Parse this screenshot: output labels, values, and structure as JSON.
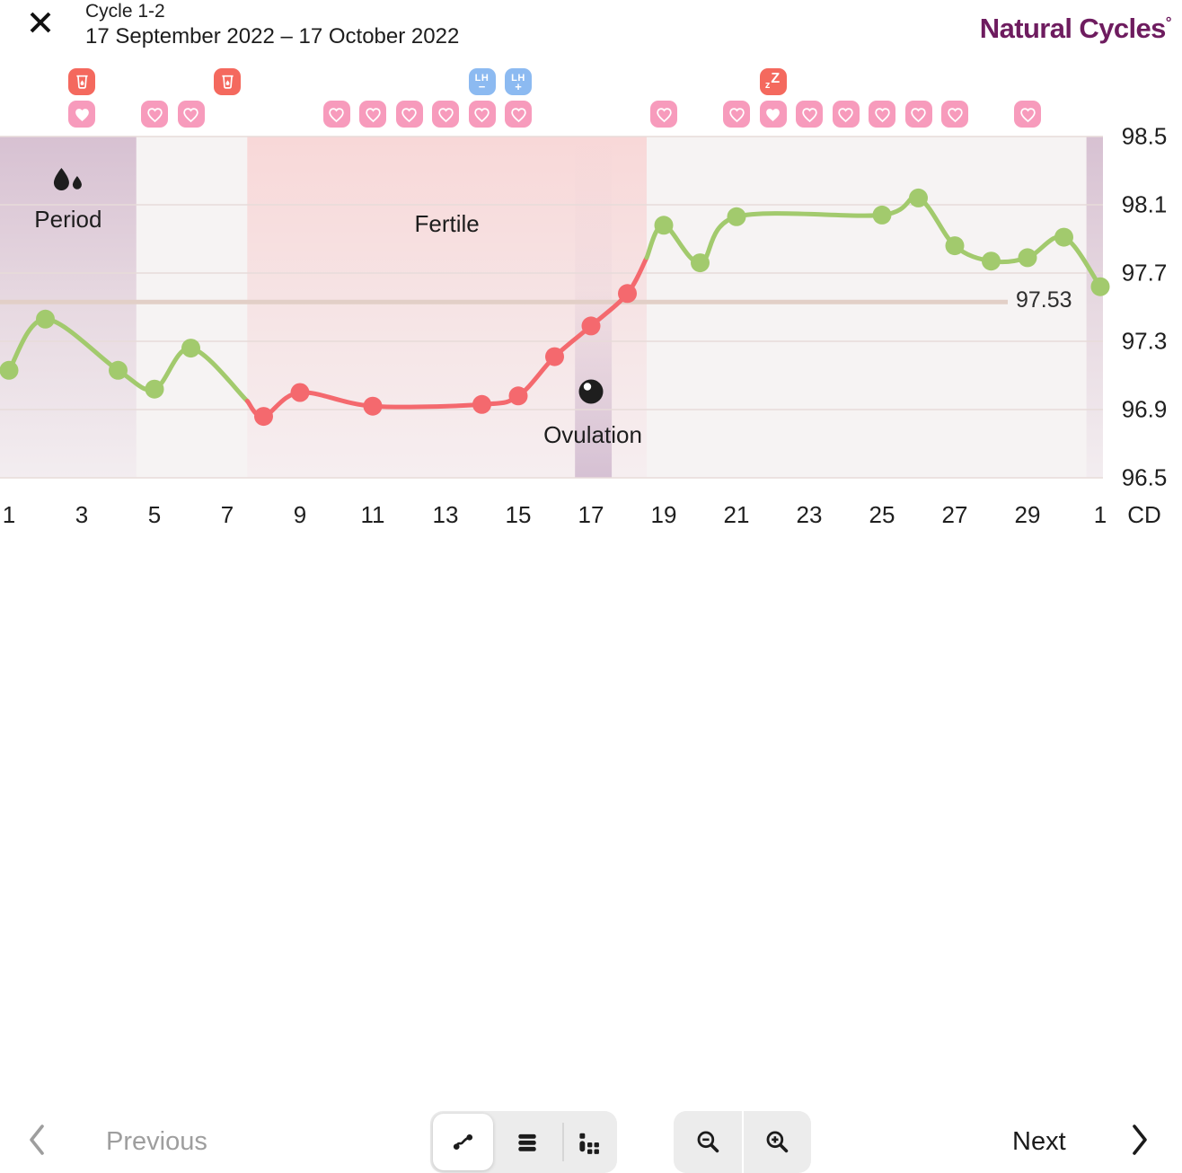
{
  "header": {
    "close_icon": "close",
    "title": "Cycle 1-2",
    "date_range": "17 September 2022 – 17 October 2022",
    "logo_text": "Natural Cycles",
    "logo_degree": "°"
  },
  "colors": {
    "logo_purple": "#6e1c5f",
    "line_green": "#a2ca6d",
    "line_red": "#f4696e",
    "heart_pink": "#f79bbc",
    "tracker_red": "#f4695e",
    "lh_blue": "#8cbaf1",
    "coverline_beige": "#e2cfc7"
  },
  "day_icons": {
    "top_row": [
      {
        "day": 3,
        "type": "menstrual-cup"
      },
      {
        "day": 7,
        "type": "menstrual-cup"
      },
      {
        "day": 14,
        "type": "lh-test-negative",
        "label": "LH",
        "sign": "−"
      },
      {
        "day": 15,
        "type": "lh-test-positive",
        "label": "LH",
        "sign": "+"
      },
      {
        "day": 22,
        "type": "sleep",
        "small_z": "z",
        "big_z": "Z"
      }
    ],
    "hearts": [
      {
        "day": 3,
        "filled": true
      },
      {
        "day": 5,
        "filled": false
      },
      {
        "day": 6,
        "filled": false
      },
      {
        "day": 10,
        "filled": false
      },
      {
        "day": 11,
        "filled": false
      },
      {
        "day": 12,
        "filled": false
      },
      {
        "day": 13,
        "filled": false
      },
      {
        "day": 14,
        "filled": false
      },
      {
        "day": 15,
        "filled": false
      },
      {
        "day": 19,
        "filled": false
      },
      {
        "day": 21,
        "filled": false
      },
      {
        "day": 22,
        "filled": true
      },
      {
        "day": 23,
        "filled": false
      },
      {
        "day": 24,
        "filled": false
      },
      {
        "day": 25,
        "filled": false
      },
      {
        "day": 26,
        "filled": false
      },
      {
        "day": 27,
        "filled": false
      },
      {
        "day": 29,
        "filled": false
      }
    ]
  },
  "chart_data": {
    "type": "line",
    "title": "Cycle 1-2 basal temperature chart",
    "x_axis_label": "CD",
    "xlim": [
      1,
      31
    ],
    "ylim": [
      96.5,
      98.5
    ],
    "grid": true,
    "y_ticks": [
      {
        "label": "98.5",
        "value": 98.5
      },
      {
        "label": "98.1",
        "value": 98.1
      },
      {
        "label": "97.7",
        "value": 97.7
      },
      {
        "label": "97.3",
        "value": 97.3
      },
      {
        "label": "96.9",
        "value": 96.9
      },
      {
        "label": "96.5",
        "value": 96.5
      }
    ],
    "x_ticks": [
      {
        "day": 1,
        "label": "1"
      },
      {
        "day": 3,
        "label": "3"
      },
      {
        "day": 5,
        "label": "5"
      },
      {
        "day": 7,
        "label": "7"
      },
      {
        "day": 9,
        "label": "9"
      },
      {
        "day": 11,
        "label": "11"
      },
      {
        "day": 13,
        "label": "13"
      },
      {
        "day": 15,
        "label": "15"
      },
      {
        "day": 17,
        "label": "17"
      },
      {
        "day": 19,
        "label": "19"
      },
      {
        "day": 21,
        "label": "21"
      },
      {
        "day": 23,
        "label": "23"
      },
      {
        "day": 25,
        "label": "25"
      },
      {
        "day": 27,
        "label": "27"
      },
      {
        "day": 29,
        "label": "29"
      },
      {
        "day": 31,
        "label": "1"
      }
    ],
    "coverline": {
      "value": 97.53,
      "label": "97.53"
    },
    "regions": [
      {
        "name": "period",
        "label": "Period",
        "start_day": 0.75,
        "end_day": 4.5
      },
      {
        "name": "fertile",
        "label": "Fertile",
        "start_day": 7.55,
        "end_day": 18.53
      },
      {
        "name": "next-period",
        "label": "",
        "start_day": 30.62,
        "end_day": 31.3
      }
    ],
    "ovulation": {
      "label": "Ovulation",
      "day": 17,
      "band_start_day": 16.56,
      "band_end_day": 17.57
    },
    "series": [
      {
        "name": "pre-fertile-temps",
        "phase": "green",
        "points": [
          {
            "day": 1,
            "temp": 97.13
          },
          {
            "day": 2,
            "temp": 97.43
          },
          {
            "day": 4,
            "temp": 97.13
          },
          {
            "day": 5,
            "temp": 97.02
          },
          {
            "day": 6,
            "temp": 97.26
          },
          {
            "day": 7.55,
            "temp": 96.95,
            "junction": true
          }
        ]
      },
      {
        "name": "fertile-temps",
        "phase": "red",
        "points": [
          {
            "day": 7.55,
            "temp": 96.95,
            "junction": true
          },
          {
            "day": 8,
            "temp": 96.86
          },
          {
            "day": 9,
            "temp": 97.0
          },
          {
            "day": 11,
            "temp": 96.92
          },
          {
            "day": 14,
            "temp": 96.93
          },
          {
            "day": 15,
            "temp": 96.98
          },
          {
            "day": 16,
            "temp": 97.21
          },
          {
            "day": 17,
            "temp": 97.39
          },
          {
            "day": 18,
            "temp": 97.58
          },
          {
            "day": 18.53,
            "temp": 97.79,
            "junction": true
          }
        ]
      },
      {
        "name": "luteal-temps",
        "phase": "green",
        "points": [
          {
            "day": 18.53,
            "temp": 97.79,
            "junction": true
          },
          {
            "day": 19,
            "temp": 97.98
          },
          {
            "day": 20,
            "temp": 97.76
          },
          {
            "day": 21,
            "temp": 98.03
          },
          {
            "day": 25,
            "temp": 98.04
          },
          {
            "day": 26,
            "temp": 98.14
          },
          {
            "day": 27,
            "temp": 97.86
          },
          {
            "day": 28,
            "temp": 97.77
          },
          {
            "day": 29,
            "temp": 97.79
          },
          {
            "day": 30,
            "temp": 97.91
          },
          {
            "day": 31,
            "temp": 97.62
          }
        ]
      }
    ]
  },
  "toolbar": {
    "previous_label": "Previous",
    "next_label": "Next",
    "view_buttons": [
      {
        "name": "chart-view",
        "active": true
      },
      {
        "name": "list-view",
        "active": false
      },
      {
        "name": "scatter-view",
        "active": false
      }
    ],
    "zoom_buttons": [
      {
        "name": "zoom-out"
      },
      {
        "name": "zoom-in"
      }
    ]
  }
}
